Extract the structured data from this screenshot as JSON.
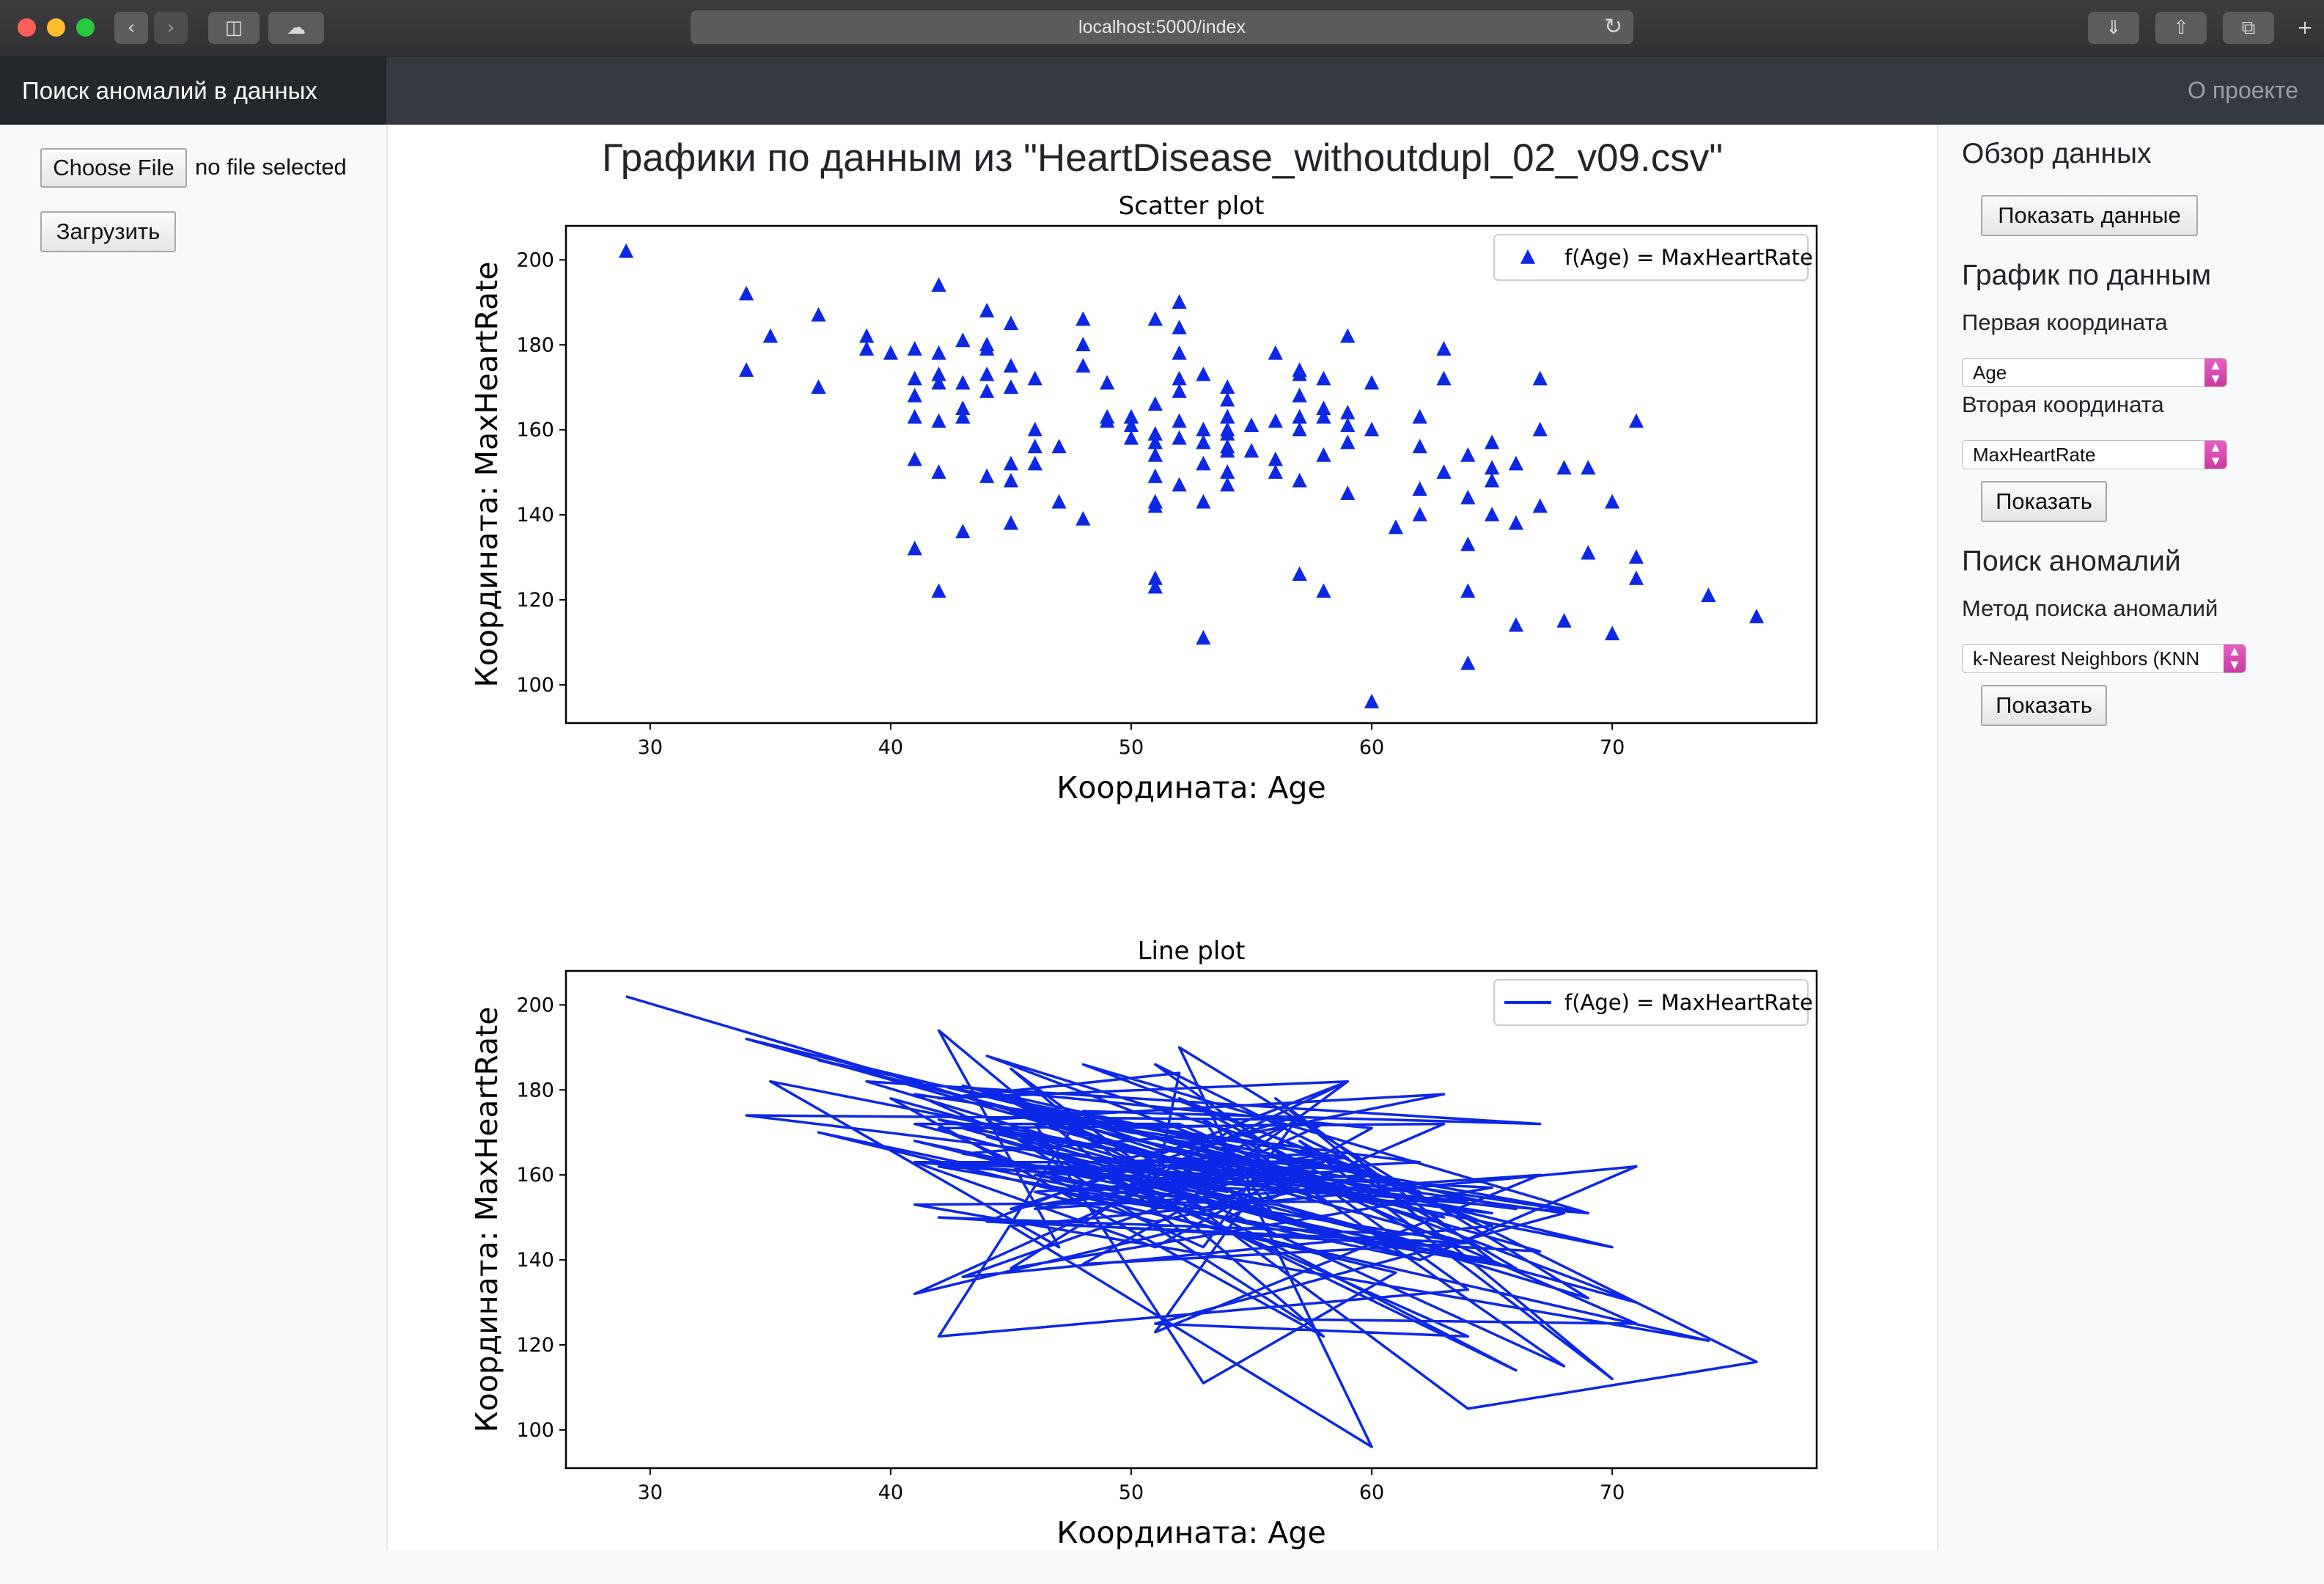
{
  "browser": {
    "url": "localhost:5000/index"
  },
  "navbar": {
    "brand": "Поиск аномалий в данных",
    "about_link": "О проекте"
  },
  "upload": {
    "choose_file": "Choose File",
    "no_file": "no file selected",
    "upload_button": "Загрузить"
  },
  "main": {
    "title": "Графики по данным из \"HeartDisease_withoutdupl_02_v09.csv\""
  },
  "sidebar": {
    "overview_heading": "Обзор данных",
    "show_data_button": "Показать данные",
    "plot_heading": "График по данным",
    "first_coord_label": "Первая координата",
    "first_coord_value": "Age",
    "second_coord_label": "Вторая координата",
    "second_coord_value": "MaxHeartRate",
    "plot_show_button": "Показать",
    "anomaly_heading": "Поиск аномалий",
    "method_label": "Метод поиска аномалий",
    "method_value": "k-Nearest Neighbors (KNN",
    "anomaly_show_button": "Показать"
  },
  "colors": {
    "series": "#0b28e6",
    "navbar": "#343a40",
    "brand_bg": "#24282c",
    "select_arrow": "#d94db4"
  },
  "chart_data": [
    {
      "type": "scatter",
      "title": "Scatter plot",
      "xlabel": "Координата: Age",
      "ylabel": "Координата: MaxHeartRate",
      "xlim": [
        26.5,
        78.5
      ],
      "ylim": [
        91,
        208
      ],
      "xticks": [
        30,
        40,
        50,
        60,
        70
      ],
      "yticks": [
        100,
        120,
        140,
        160,
        180,
        200
      ],
      "legend": "f(Age) = MaxHeartRate",
      "legend_position": "top-right",
      "marker": "triangle",
      "grid": false,
      "points": [
        [
          29,
          202
        ],
        [
          34,
          192
        ],
        [
          34,
          174
        ],
        [
          35,
          182
        ],
        [
          37,
          187
        ],
        [
          37,
          170
        ],
        [
          39,
          182
        ],
        [
          39,
          179
        ],
        [
          40,
          178
        ],
        [
          41,
          179
        ],
        [
          41,
          172
        ],
        [
          41,
          168
        ],
        [
          41,
          163
        ],
        [
          41,
          153
        ],
        [
          41,
          132
        ],
        [
          42,
          194
        ],
        [
          42,
          178
        ],
        [
          42,
          173
        ],
        [
          42,
          171
        ],
        [
          42,
          162
        ],
        [
          42,
          150
        ],
        [
          42,
          122
        ],
        [
          43,
          181
        ],
        [
          43,
          171
        ],
        [
          43,
          165
        ],
        [
          43,
          163
        ],
        [
          43,
          136
        ],
        [
          44,
          188
        ],
        [
          44,
          180
        ],
        [
          44,
          179
        ],
        [
          44,
          173
        ],
        [
          44,
          169
        ],
        [
          44,
          149
        ],
        [
          45,
          185
        ],
        [
          45,
          175
        ],
        [
          45,
          170
        ],
        [
          45,
          152
        ],
        [
          45,
          148
        ],
        [
          45,
          138
        ],
        [
          46,
          172
        ],
        [
          46,
          160
        ],
        [
          46,
          156
        ],
        [
          46,
          152
        ],
        [
          47,
          156
        ],
        [
          47,
          143
        ],
        [
          48,
          186
        ],
        [
          48,
          180
        ],
        [
          48,
          175
        ],
        [
          48,
          139
        ],
        [
          49,
          171
        ],
        [
          49,
          163
        ],
        [
          49,
          162
        ],
        [
          50,
          163
        ],
        [
          50,
          161
        ],
        [
          50,
          158
        ],
        [
          51,
          186
        ],
        [
          51,
          166
        ],
        [
          51,
          159
        ],
        [
          51,
          157
        ],
        [
          51,
          154
        ],
        [
          51,
          149
        ],
        [
          51,
          143
        ],
        [
          51,
          142
        ],
        [
          51,
          125
        ],
        [
          51,
          123
        ],
        [
          52,
          190
        ],
        [
          52,
          184
        ],
        [
          52,
          178
        ],
        [
          52,
          172
        ],
        [
          52,
          169
        ],
        [
          52,
          162
        ],
        [
          52,
          158
        ],
        [
          52,
          147
        ],
        [
          53,
          173
        ],
        [
          53,
          160
        ],
        [
          53,
          157
        ],
        [
          53,
          152
        ],
        [
          53,
          143
        ],
        [
          53,
          111
        ],
        [
          54,
          170
        ],
        [
          54,
          167
        ],
        [
          54,
          163
        ],
        [
          54,
          160
        ],
        [
          54,
          159
        ],
        [
          54,
          156
        ],
        [
          54,
          155
        ],
        [
          54,
          150
        ],
        [
          54,
          147
        ],
        [
          55,
          161
        ],
        [
          55,
          155
        ],
        [
          56,
          178
        ],
        [
          56,
          162
        ],
        [
          56,
          153
        ],
        [
          56,
          150
        ],
        [
          57,
          174
        ],
        [
          57,
          173
        ],
        [
          57,
          168
        ],
        [
          57,
          163
        ],
        [
          57,
          160
        ],
        [
          57,
          148
        ],
        [
          57,
          126
        ],
        [
          58,
          172
        ],
        [
          58,
          165
        ],
        [
          58,
          163
        ],
        [
          58,
          154
        ],
        [
          58,
          122
        ],
        [
          59,
          182
        ],
        [
          59,
          164
        ],
        [
          59,
          161
        ],
        [
          59,
          157
        ],
        [
          59,
          145
        ],
        [
          60,
          171
        ],
        [
          60,
          160
        ],
        [
          60,
          96
        ],
        [
          61,
          137
        ],
        [
          62,
          163
        ],
        [
          62,
          156
        ],
        [
          62,
          146
        ],
        [
          62,
          140
        ],
        [
          63,
          179
        ],
        [
          63,
          172
        ],
        [
          63,
          150
        ],
        [
          64,
          154
        ],
        [
          64,
          144
        ],
        [
          64,
          133
        ],
        [
          64,
          122
        ],
        [
          64,
          105
        ],
        [
          65,
          157
        ],
        [
          65,
          151
        ],
        [
          65,
          148
        ],
        [
          65,
          140
        ],
        [
          66,
          152
        ],
        [
          66,
          138
        ],
        [
          66,
          114
        ],
        [
          67,
          172
        ],
        [
          67,
          160
        ],
        [
          67,
          142
        ],
        [
          68,
          151
        ],
        [
          68,
          115
        ],
        [
          69,
          151
        ],
        [
          69,
          131
        ],
        [
          70,
          143
        ],
        [
          70,
          112
        ],
        [
          71,
          162
        ],
        [
          71,
          130
        ],
        [
          71,
          125
        ],
        [
          74,
          121
        ],
        [
          76,
          116
        ]
      ]
    },
    {
      "type": "line",
      "title": "Line plot",
      "xlabel": "Координата: Age",
      "ylabel": "Координата: MaxHeartRate",
      "xlim": [
        26.5,
        78.5
      ],
      "ylim": [
        91,
        208
      ],
      "xticks": [
        30,
        40,
        50,
        60,
        70
      ],
      "yticks": [
        100,
        120,
        140,
        160,
        180,
        200
      ],
      "legend": "f(Age) = MaxHeartRate",
      "legend_position": "top-right",
      "grid": false,
      "points": [
        [
          29,
          202
        ],
        [
          54,
          160
        ],
        [
          34,
          192
        ],
        [
          70,
          143
        ],
        [
          35,
          182
        ],
        [
          47,
          143
        ],
        [
          42,
          194
        ],
        [
          52,
          147
        ],
        [
          41,
          132
        ],
        [
          57,
          173
        ],
        [
          34,
          174
        ],
        [
          66,
          152
        ],
        [
          43,
          181
        ],
        [
          63,
          150
        ],
        [
          37,
          187
        ],
        [
          60,
          160
        ],
        [
          44,
          188
        ],
        [
          71,
          130
        ],
        [
          40,
          178
        ],
        [
          58,
          122
        ],
        [
          45,
          185
        ],
        [
          64,
          105
        ],
        [
          76,
          116
        ],
        [
          51,
          186
        ],
        [
          64,
          133
        ],
        [
          42,
          122
        ],
        [
          48,
          175
        ],
        [
          67,
          172
        ],
        [
          39,
          182
        ],
        [
          69,
          131
        ],
        [
          52,
          190
        ],
        [
          60,
          96
        ],
        [
          45,
          148
        ],
        [
          71,
          162
        ],
        [
          62,
          140
        ],
        [
          37,
          170
        ],
        [
          61,
          137
        ],
        [
          53,
          111
        ],
        [
          46,
          172
        ],
        [
          64,
          144
        ],
        [
          44,
          149
        ],
        [
          59,
          182
        ],
        [
          50,
          158
        ],
        [
          64,
          154
        ],
        [
          41,
          153
        ],
        [
          74,
          121
        ],
        [
          47,
          156
        ],
        [
          65,
          140
        ],
        [
          56,
          178
        ],
        [
          70,
          112
        ],
        [
          57,
          168
        ],
        [
          66,
          138
        ],
        [
          42,
          162
        ],
        [
          62,
          156
        ],
        [
          48,
          186
        ],
        [
          69,
          151
        ],
        [
          43,
          163
        ],
        [
          65,
          157
        ],
        [
          45,
          138
        ],
        [
          54,
          170
        ],
        [
          68,
          115
        ],
        [
          51,
          159
        ],
        [
          59,
          145
        ],
        [
          41,
          172
        ],
        [
          52,
          172
        ],
        [
          71,
          125
        ],
        [
          57,
          126
        ],
        [
          44,
          173
        ],
        [
          63,
          179
        ],
        [
          49,
          163
        ],
        [
          58,
          165
        ],
        [
          46,
          152
        ],
        [
          67,
          160
        ],
        [
          51,
          123
        ],
        [
          55,
          155
        ],
        [
          42,
          173
        ],
        [
          65,
          151
        ],
        [
          50,
          161
        ],
        [
          66,
          114
        ],
        [
          54,
          147
        ],
        [
          41,
          179
        ],
        [
          59,
          164
        ],
        [
          52,
          162
        ],
        [
          57,
          148
        ],
        [
          43,
          171
        ],
        [
          68,
          151
        ],
        [
          51,
          125
        ],
        [
          64,
          122
        ],
        [
          45,
          170
        ],
        [
          56,
          150
        ],
        [
          53,
          173
        ],
        [
          62,
          146
        ],
        [
          42,
          150
        ],
        [
          67,
          142
        ],
        [
          54,
          163
        ],
        [
          58,
          154
        ],
        [
          44,
          180
        ],
        [
          60,
          171
        ],
        [
          51,
          143
        ],
        [
          41,
          163
        ],
        [
          57,
          163
        ],
        [
          53,
          152
        ],
        [
          46,
          160
        ],
        [
          64,
          144
        ],
        [
          48,
          139
        ],
        [
          55,
          161
        ],
        [
          62,
          163
        ],
        [
          45,
          175
        ],
        [
          59,
          157
        ],
        [
          52,
          178
        ],
        [
          65,
          148
        ],
        [
          43,
          136
        ],
        [
          56,
          162
        ],
        [
          69,
          151
        ],
        [
          49,
          171
        ],
        [
          58,
          172
        ],
        [
          51,
          154
        ],
        [
          41,
          168
        ],
        [
          66,
          138
        ],
        [
          54,
          155
        ],
        [
          44,
          169
        ],
        [
          62,
          140
        ],
        [
          52,
          158
        ],
        [
          45,
          152
        ],
        [
          57,
          174
        ],
        [
          53,
          143
        ],
        [
          42,
          171
        ],
        [
          63,
          172
        ],
        [
          54,
          150
        ],
        [
          47,
          156
        ],
        [
          60,
          160
        ],
        [
          51,
          149
        ],
        [
          46,
          156
        ],
        [
          59,
          161
        ],
        [
          51,
          166
        ],
        [
          44,
          179
        ],
        [
          57,
          160
        ],
        [
          52,
          169
        ],
        [
          43,
          165
        ],
        [
          56,
          153
        ],
        [
          54,
          167
        ],
        [
          45,
          175
        ],
        [
          54,
          159
        ],
        [
          49,
          162
        ],
        [
          58,
          163
        ],
        [
          51,
          157
        ],
        [
          52,
          184
        ],
        [
          42,
          178
        ],
        [
          59,
          182
        ],
        [
          53,
          157
        ],
        [
          54,
          156
        ],
        [
          44,
          180
        ],
        [
          52,
          158
        ],
        [
          41,
          163
        ],
        [
          53,
          160
        ]
      ]
    }
  ]
}
